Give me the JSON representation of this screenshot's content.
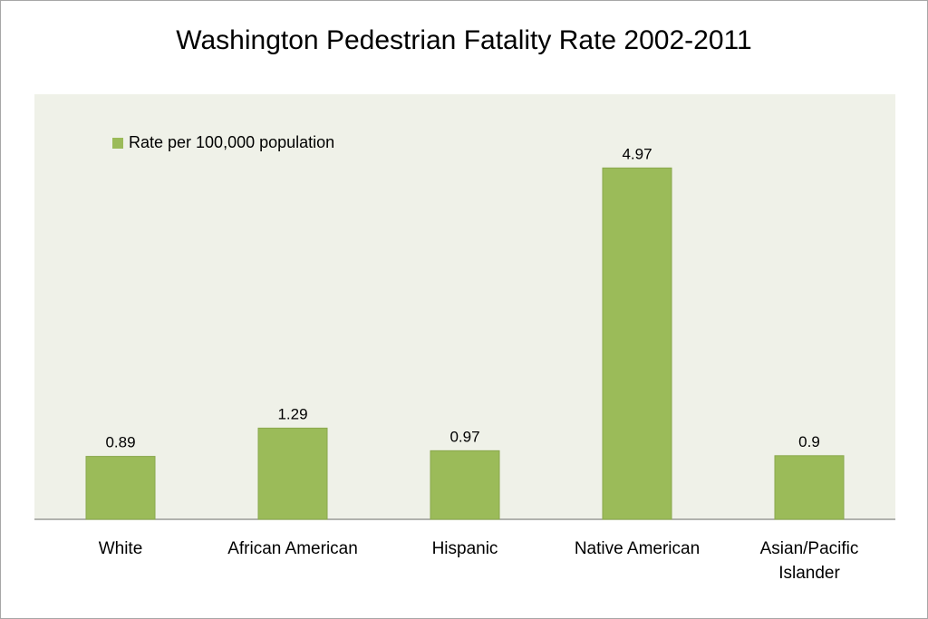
{
  "chart_data": {
    "type": "bar",
    "title": "Washington Pedestrian Fatality Rate 2002-2011",
    "categories": [
      "White",
      "African American",
      "Hispanic",
      "Native American",
      "Asian/Pacific Islander"
    ],
    "series": [
      {
        "name": "Rate per 100,000 population",
        "values": [
          0.89,
          1.29,
          0.97,
          4.97,
          0.9
        ]
      }
    ],
    "data_labels": [
      "0.89",
      "1.29",
      "0.97",
      "4.97",
      "0.9"
    ],
    "xlabel": "",
    "ylabel": "",
    "ylim": [
      0,
      6
    ],
    "grid": false,
    "legend_position": "top-left",
    "colors": {
      "bar": "#9bbb59",
      "plot_background": "#eff1e8",
      "axis": "#8c8c8c"
    }
  }
}
